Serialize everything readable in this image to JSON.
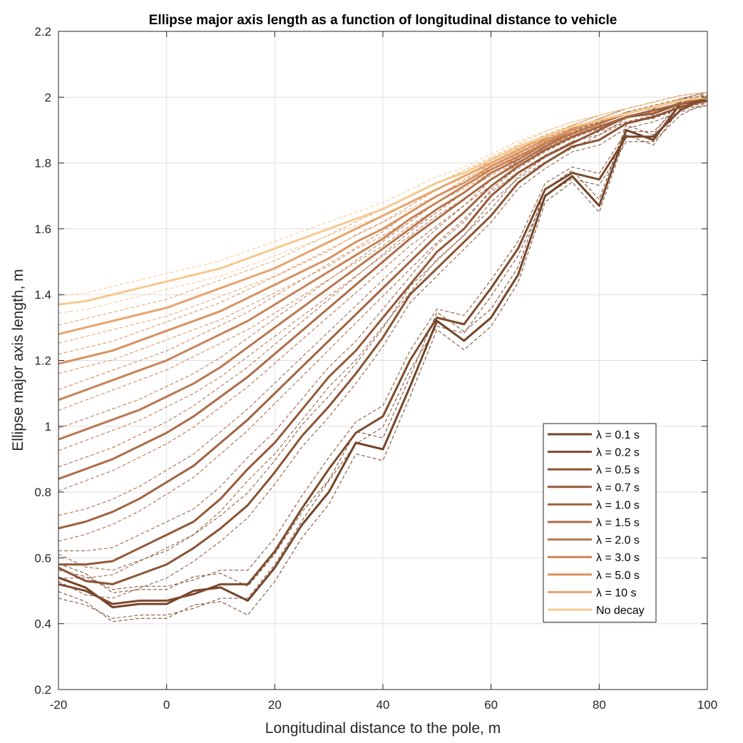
{
  "chart_data": {
    "type": "line",
    "title": "Ellipse major axis length as a function of longitudinal distance to vehicle",
    "xlabel": "Longitudinal distance to the pole, m",
    "ylabel": "Ellipse major axis length, m",
    "xlim": [
      -20,
      100
    ],
    "ylim": [
      0.2,
      2.2
    ],
    "xticks": [
      -20,
      0,
      20,
      40,
      60,
      80,
      100
    ],
    "yticks": [
      0.2,
      0.4,
      0.6,
      0.8,
      1.0,
      1.2,
      1.4,
      1.6,
      1.8,
      2.0,
      2.2
    ],
    "xtick_labels": [
      "-20",
      "0",
      "20",
      "40",
      "60",
      "80",
      "100"
    ],
    "ytick_labels": [
      "0.2",
      "0.4",
      "0.6",
      "0.8",
      "1",
      "1.2",
      "1.4",
      "1.6",
      "1.8",
      "2",
      "2.2"
    ],
    "grid": true,
    "legend_position": "bottom-right",
    "x": [
      -20,
      -15,
      -10,
      -5,
      0,
      5,
      10,
      15,
      20,
      25,
      30,
      35,
      40,
      45,
      50,
      55,
      60,
      65,
      70,
      75,
      80,
      85,
      90,
      95,
      100
    ],
    "series": [
      {
        "name": "λ = 0.1 s",
        "color": "#734428",
        "values": [
          0.54,
          0.51,
          0.45,
          0.46,
          0.46,
          0.5,
          0.51,
          0.47,
          0.57,
          0.7,
          0.8,
          0.95,
          0.93,
          1.12,
          1.32,
          1.26,
          1.33,
          1.46,
          1.7,
          1.76,
          1.67,
          1.9,
          1.87,
          1.98,
          1.99
        ]
      },
      {
        "name": "λ = 0.2 s",
        "color": "#7d4a2d",
        "values": [
          0.52,
          0.5,
          0.46,
          0.47,
          0.47,
          0.49,
          0.52,
          0.52,
          0.62,
          0.75,
          0.87,
          0.98,
          1.03,
          1.2,
          1.33,
          1.31,
          1.42,
          1.54,
          1.72,
          1.77,
          1.75,
          1.88,
          1.88,
          1.96,
          2.0
        ]
      },
      {
        "name": "λ = 0.5 s",
        "color": "#8a5334",
        "values": [
          0.57,
          0.53,
          0.52,
          0.55,
          0.58,
          0.63,
          0.69,
          0.76,
          0.86,
          0.97,
          1.06,
          1.16,
          1.27,
          1.4,
          1.48,
          1.56,
          1.64,
          1.74,
          1.8,
          1.85,
          1.87,
          1.92,
          1.94,
          1.97,
          1.99
        ]
      },
      {
        "name": "λ = 0.7 s",
        "color": "#94593a",
        "values": [
          0.58,
          0.58,
          0.59,
          0.63,
          0.67,
          0.71,
          0.78,
          0.87,
          0.95,
          1.05,
          1.15,
          1.23,
          1.33,
          1.43,
          1.53,
          1.6,
          1.7,
          1.77,
          1.82,
          1.86,
          1.9,
          1.94,
          1.95,
          1.98,
          2.0
        ]
      },
      {
        "name": "λ = 1.0 s",
        "color": "#a06341",
        "values": [
          0.69,
          0.71,
          0.74,
          0.78,
          0.83,
          0.88,
          0.95,
          1.02,
          1.1,
          1.18,
          1.26,
          1.34,
          1.42,
          1.5,
          1.58,
          1.65,
          1.73,
          1.79,
          1.84,
          1.88,
          1.91,
          1.94,
          1.96,
          1.98,
          2.0
        ]
      },
      {
        "name": "λ = 1.5 s",
        "color": "#ad6c48",
        "values": [
          0.84,
          0.87,
          0.9,
          0.94,
          0.98,
          1.03,
          1.09,
          1.15,
          1.22,
          1.29,
          1.36,
          1.43,
          1.5,
          1.57,
          1.63,
          1.69,
          1.75,
          1.8,
          1.85,
          1.89,
          1.92,
          1.95,
          1.97,
          1.99,
          2.0
        ]
      },
      {
        "name": "λ = 2.0 s",
        "color": "#ba764f",
        "values": [
          0.96,
          0.99,
          1.02,
          1.05,
          1.09,
          1.13,
          1.18,
          1.24,
          1.3,
          1.36,
          1.42,
          1.48,
          1.54,
          1.6,
          1.66,
          1.71,
          1.77,
          1.81,
          1.86,
          1.89,
          1.92,
          1.95,
          1.97,
          1.99,
          2.0
        ]
      },
      {
        "name": "λ = 3.0 s",
        "color": "#c98356",
        "values": [
          1.08,
          1.11,
          1.14,
          1.17,
          1.2,
          1.24,
          1.28,
          1.32,
          1.37,
          1.42,
          1.47,
          1.52,
          1.57,
          1.63,
          1.68,
          1.73,
          1.78,
          1.82,
          1.86,
          1.9,
          1.93,
          1.95,
          1.97,
          1.99,
          2.0
        ]
      },
      {
        "name": "λ = 5.0 s",
        "color": "#d8915f",
        "values": [
          1.19,
          1.21,
          1.23,
          1.26,
          1.29,
          1.32,
          1.35,
          1.39,
          1.43,
          1.47,
          1.51,
          1.56,
          1.6,
          1.65,
          1.7,
          1.74,
          1.79,
          1.83,
          1.87,
          1.9,
          1.93,
          1.95,
          1.97,
          1.99,
          2.0
        ]
      },
      {
        "name": "λ =  10 s",
        "color": "#e7a46c",
        "values": [
          1.28,
          1.3,
          1.32,
          1.34,
          1.36,
          1.39,
          1.42,
          1.45,
          1.48,
          1.52,
          1.56,
          1.6,
          1.64,
          1.68,
          1.72,
          1.76,
          1.8,
          1.84,
          1.88,
          1.91,
          1.93,
          1.95,
          1.97,
          1.99,
          2.0
        ]
      },
      {
        "name": "No decay",
        "color": "#f7c98d",
        "values": [
          1.37,
          1.38,
          1.4,
          1.42,
          1.44,
          1.46,
          1.48,
          1.51,
          1.54,
          1.57,
          1.6,
          1.63,
          1.66,
          1.7,
          1.74,
          1.77,
          1.81,
          1.85,
          1.88,
          1.91,
          1.93,
          1.95,
          1.97,
          1.99,
          2.0
        ]
      }
    ]
  }
}
